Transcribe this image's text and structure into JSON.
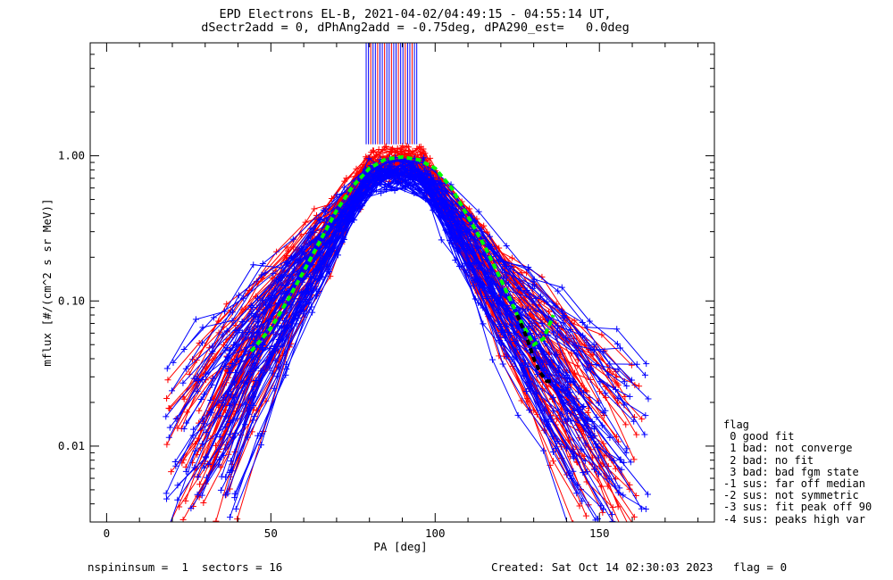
{
  "chart_data": {
    "type": "scatter",
    "title": "EPD Electrons EL-B, 2021-04-02/04:49:15 - 04:55:14 UT,",
    "subtitle": "dSectr2add = 0, dPhAng2add = -0.75deg, dPA290_est=   0.0deg",
    "xlabel": "PA [deg]",
    "ylabel": "mflux [#/(cm^2 s sr MeV)]",
    "xlim": [
      -5,
      185
    ],
    "ylim": [
      0.003,
      6
    ],
    "yscale": "log",
    "xticks": [
      "0",
      "50",
      "100",
      "150"
    ],
    "yticks": [
      "0.01",
      "0.10",
      "1.00"
    ],
    "grid": false,
    "legend_position": "right",
    "colors": {
      "red": "#ff0000",
      "blue": "#0000ff",
      "green": "#00ff00",
      "black": "#000000"
    },
    "series": [
      {
        "color": "red",
        "marker": "+",
        "spectra_count": 60,
        "left_start_x": [
          18,
          40
        ],
        "peak_y": 0.98,
        "peak_x": [
          80,
          98
        ],
        "right_end_x": [
          140,
          163
        ],
        "end_y": [
          0.003,
          0.04
        ]
      },
      {
        "color": "blue",
        "marker": "+",
        "spectra_count": 60,
        "left_start_x": [
          18,
          40
        ],
        "peak_y": 0.8,
        "peak_x": [
          80,
          98
        ],
        "right_end_x": [
          140,
          165
        ],
        "end_y": [
          0.003,
          0.04
        ]
      },
      {
        "color": "green",
        "style": "dashed",
        "x": [
          44,
          50,
          55,
          60,
          65,
          70,
          75,
          80,
          85,
          90,
          95,
          100,
          105,
          110,
          115,
          120,
          125,
          130,
          133,
          136
        ],
        "y": [
          0.045,
          0.065,
          0.1,
          0.16,
          0.26,
          0.42,
          0.62,
          0.82,
          0.95,
          0.98,
          0.94,
          0.82,
          0.6,
          0.38,
          0.24,
          0.14,
          0.08,
          0.05,
          0.055,
          0.08
        ]
      },
      {
        "color": "black",
        "style": "dashed",
        "x": [
          125,
          128,
          130,
          132,
          134,
          136
        ],
        "y": [
          0.08,
          0.055,
          0.04,
          0.032,
          0.028,
          0.028
        ]
      }
    ],
    "spikes": {
      "x_range": [
        79,
        95
      ],
      "y_from": 1.2,
      "y_to": 6
    }
  },
  "legend": {
    "title": "flag",
    "items": [
      " 0 good fit",
      " 1 bad: not converge",
      " 2 bad: no fit",
      " 3 bad: bad fgm state",
      "-1 sus: far off median",
      "-2 sus: not symmetric",
      "-3 sus: fit peak off 90",
      "-4 sus: peaks high var"
    ]
  },
  "footer": {
    "left": "nspininsum =  1  sectors = 16",
    "right": "Created: Sat Oct 14 02:30:03 2023   flag = 0"
  }
}
